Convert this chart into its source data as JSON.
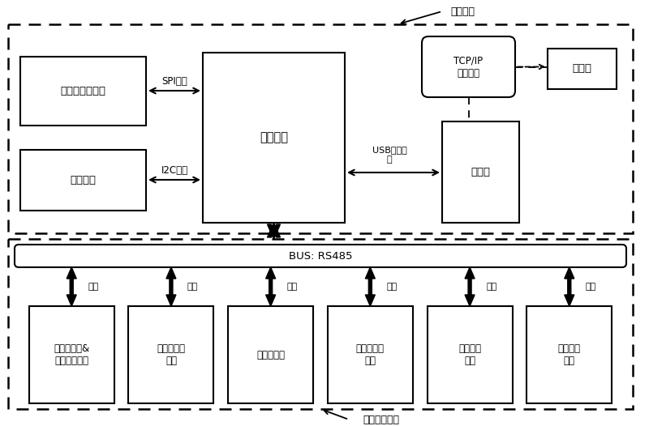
{
  "bg_color": "#ffffff",
  "top_label": "主控模块",
  "bottom_label": "协同控制模块",
  "sample_text": "样本与试剂单元",
  "temp_text": "温控单元",
  "main_ctrl_text": "主控单元",
  "computer_text": "计算机",
  "tcp_text": "TCP/IP\n通讯模块",
  "wan_text": "万维网",
  "spi_text": "SPI总线",
  "i2c_text": "I2C总线",
  "usb_text": "USB通讯模\n块",
  "bus_text": "BUS: RS485",
  "xietong_text": "协同",
  "mod_texts": [
    "血液流变仪&\n血沉检测模块",
    "生化分析仪\n模块",
    "血球仪模块",
    "溶血分析仪\n模块",
    "加样中心\n模块",
    "清洗中心\n模块"
  ]
}
